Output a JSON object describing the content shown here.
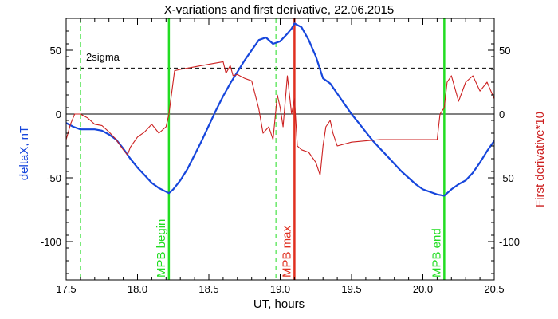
{
  "chart_data": {
    "type": "line",
    "title": "X-variations and first derivative, 22.06.2015",
    "xlabel": "UT, hours",
    "ylabel_left": "deltaX, nT",
    "ylabel_right": "First derivative*10",
    "xlim": [
      17.5,
      20.5
    ],
    "ylim": [
      -130,
      75
    ],
    "x_ticks": [
      "17.5",
      "18.0",
      "18.5",
      "19.0",
      "19.5",
      "20.0",
      "20.5"
    ],
    "y_ticks_left": [
      "50",
      "0",
      "-50",
      "-100"
    ],
    "y_ticks_right": [
      "50",
      "0",
      "-50",
      "-100"
    ],
    "colors": {
      "deltaX": "#1646dc",
      "derivative": "#cc2020",
      "mpb_begin_end": "#22dd22",
      "mpb_max": "#e03020",
      "sigma_line": "#000000"
    },
    "reference_lines": {
      "zero": 0,
      "two_sigma": {
        "label": "2sigma",
        "value": 36
      }
    },
    "vertical_markers": [
      {
        "name": "dashed-green-1",
        "x": 17.6,
        "style": "dashed",
        "color": "#22dd22",
        "label": ""
      },
      {
        "name": "mpb-begin",
        "x": 18.22,
        "style": "solid",
        "color": "#22dd22",
        "label": "MPB begin"
      },
      {
        "name": "dashed-green-2",
        "x": 18.97,
        "style": "dashed",
        "color": "#22dd22",
        "label": ""
      },
      {
        "name": "mpb-max",
        "x": 19.1,
        "style": "solid",
        "color": "#e03020",
        "label": "MPB max"
      },
      {
        "name": "mpb-end",
        "x": 20.15,
        "style": "solid",
        "color": "#22dd22",
        "label": "MPB end"
      }
    ],
    "series": [
      {
        "key": "deltaX",
        "x": [
          17.5,
          17.55,
          17.6,
          17.65,
          17.7,
          17.75,
          17.8,
          17.85,
          17.9,
          17.95,
          18.0,
          18.05,
          18.1,
          18.15,
          18.22,
          18.25,
          18.3,
          18.35,
          18.4,
          18.45,
          18.5,
          18.55,
          18.6,
          18.65,
          18.7,
          18.75,
          18.8,
          18.85,
          18.9,
          18.95,
          19.0,
          19.05,
          19.08,
          19.1,
          19.15,
          19.2,
          19.25,
          19.3,
          19.35,
          19.4,
          19.45,
          19.5,
          19.55,
          19.6,
          19.65,
          19.7,
          19.75,
          19.8,
          19.85,
          19.9,
          19.95,
          20.0,
          20.05,
          20.1,
          20.15,
          20.2,
          20.25,
          20.3,
          20.35,
          20.4,
          20.45,
          20.5
        ],
        "values": [
          -7,
          -10,
          -12,
          -12,
          -12,
          -13,
          -16,
          -20,
          -27,
          -35,
          -42,
          -48,
          -54,
          -58,
          -62,
          -59,
          -52,
          -43,
          -32,
          -21,
          -9,
          3,
          14,
          24,
          33,
          42,
          50,
          58,
          60,
          55,
          57,
          63,
          67,
          71,
          68,
          58,
          45,
          28,
          24,
          16,
          8,
          0,
          -7,
          -14,
          -21,
          -27,
          -33,
          -39,
          -45,
          -50,
          -55,
          -59,
          -61,
          -63,
          -64,
          -59,
          -55,
          -52,
          -46,
          -38,
          -29,
          -21
        ]
      },
      {
        "key": "derivative",
        "x": [
          17.5,
          17.53,
          17.56,
          17.6,
          17.65,
          17.7,
          17.75,
          17.8,
          17.85,
          17.9,
          17.93,
          17.95,
          18.0,
          18.05,
          18.1,
          18.15,
          18.2,
          18.22,
          18.26,
          18.3,
          18.4,
          18.5,
          18.6,
          18.62,
          18.65,
          18.67,
          18.7,
          18.75,
          18.8,
          18.85,
          18.88,
          18.92,
          18.95,
          18.98,
          19.0,
          19.02,
          19.05,
          19.08,
          19.1,
          19.12,
          19.15,
          19.2,
          19.25,
          19.28,
          19.3,
          19.32,
          19.35,
          19.37,
          19.4,
          19.5,
          19.6,
          19.7,
          19.8,
          19.9,
          20.0,
          20.1,
          20.12,
          20.15,
          20.17,
          20.2,
          20.25,
          20.3,
          20.35,
          20.4,
          20.45,
          20.5
        ],
        "values": [
          -20,
          -8,
          0,
          0,
          -3,
          -8,
          -9,
          -14,
          -20,
          -28,
          -32,
          -26,
          -18,
          -14,
          -8,
          -15,
          -10,
          0,
          34,
          35,
          37,
          39,
          41,
          32,
          38,
          30,
          31,
          28,
          26,
          4,
          -15,
          -10,
          -20,
          15,
          5,
          -10,
          30,
          0,
          12,
          -25,
          -28,
          -30,
          -38,
          -48,
          -25,
          -10,
          -5,
          -15,
          -25,
          -22,
          -21,
          -20,
          -20,
          -20,
          -20,
          -20,
          0,
          5,
          25,
          30,
          10,
          25,
          30,
          18,
          25,
          12
        ]
      }
    ]
  }
}
